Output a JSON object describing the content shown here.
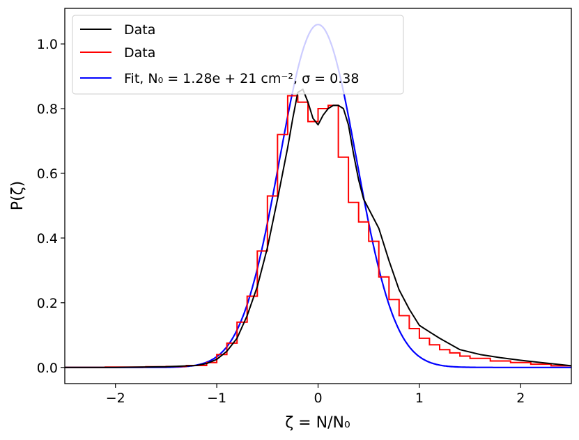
{
  "chart_data": {
    "type": "line",
    "title": "",
    "xlabel": "ζ = N/N₀",
    "ylabel": "P(ζ)",
    "xlim": [
      -2.5,
      2.5
    ],
    "ylim": [
      -0.05,
      1.11
    ],
    "xticks": [
      -2,
      -1,
      0,
      1,
      2
    ],
    "xtick_labels": [
      "−2",
      "−1",
      "0",
      "1",
      "2"
    ],
    "yticks": [
      0.0,
      0.2,
      0.4,
      0.6,
      0.8,
      1.0
    ],
    "ytick_labels": [
      "0.0",
      "0.2",
      "0.4",
      "0.6",
      "0.8",
      "1.0"
    ],
    "grid": false,
    "legend_position": "top-left",
    "legend": [
      {
        "label": "Data",
        "color": "#000000"
      },
      {
        "label": "Data",
        "color": "#ff0000"
      },
      {
        "label": "Fit, N₀ = 1.28e + 21 cm⁻², σ = 0.38",
        "color": "#0000ff"
      }
    ],
    "series": [
      {
        "name": "Data",
        "style": "line",
        "color": "#000000",
        "x": [
          -2.5,
          -2.0,
          -1.5,
          -1.2,
          -1.1,
          -1.0,
          -0.9,
          -0.8,
          -0.7,
          -0.6,
          -0.5,
          -0.4,
          -0.3,
          -0.25,
          -0.2,
          -0.15,
          -0.1,
          -0.05,
          0.0,
          0.05,
          0.1,
          0.15,
          0.2,
          0.25,
          0.3,
          0.35,
          0.4,
          0.45,
          0.5,
          0.6,
          0.7,
          0.8,
          0.9,
          1.0,
          1.1,
          1.2,
          1.4,
          1.6,
          1.8,
          2.0,
          2.2,
          2.5
        ],
        "y": [
          0.0,
          0.0,
          0.002,
          0.006,
          0.012,
          0.025,
          0.05,
          0.09,
          0.16,
          0.25,
          0.37,
          0.52,
          0.68,
          0.77,
          0.85,
          0.86,
          0.82,
          0.77,
          0.75,
          0.78,
          0.8,
          0.81,
          0.81,
          0.8,
          0.75,
          0.66,
          0.58,
          0.52,
          0.49,
          0.43,
          0.33,
          0.24,
          0.18,
          0.13,
          0.11,
          0.09,
          0.055,
          0.04,
          0.03,
          0.022,
          0.015,
          0.005
        ]
      },
      {
        "name": "Data",
        "style": "step",
        "color": "#ff0000",
        "bin_edges": [
          -2.5,
          -2.3,
          -2.1,
          -1.9,
          -1.7,
          -1.5,
          -1.3,
          -1.1,
          -1.0,
          -0.9,
          -0.8,
          -0.7,
          -0.6,
          -0.5,
          -0.4,
          -0.3,
          -0.2,
          -0.1,
          0.0,
          0.1,
          0.2,
          0.3,
          0.4,
          0.5,
          0.6,
          0.7,
          0.8,
          0.9,
          1.0,
          1.1,
          1.2,
          1.3,
          1.4,
          1.5,
          1.7,
          1.9,
          2.1,
          2.3,
          2.5
        ],
        "values": [
          0.0,
          0.0,
          0.001,
          0.001,
          0.002,
          0.003,
          0.006,
          0.015,
          0.04,
          0.075,
          0.14,
          0.22,
          0.36,
          0.53,
          0.72,
          0.84,
          0.82,
          0.76,
          0.8,
          0.81,
          0.65,
          0.51,
          0.45,
          0.39,
          0.28,
          0.21,
          0.16,
          0.12,
          0.09,
          0.07,
          0.055,
          0.045,
          0.035,
          0.028,
          0.02,
          0.015,
          0.01,
          0.005
        ]
      },
      {
        "name": "Fit, N₀ = 1.28e + 21 cm⁻², σ = 0.38",
        "style": "line",
        "color": "#0000ff",
        "function": "lognormal",
        "amplitude": 1.06,
        "mean": 0.0,
        "sigma": 0.38
      }
    ]
  }
}
